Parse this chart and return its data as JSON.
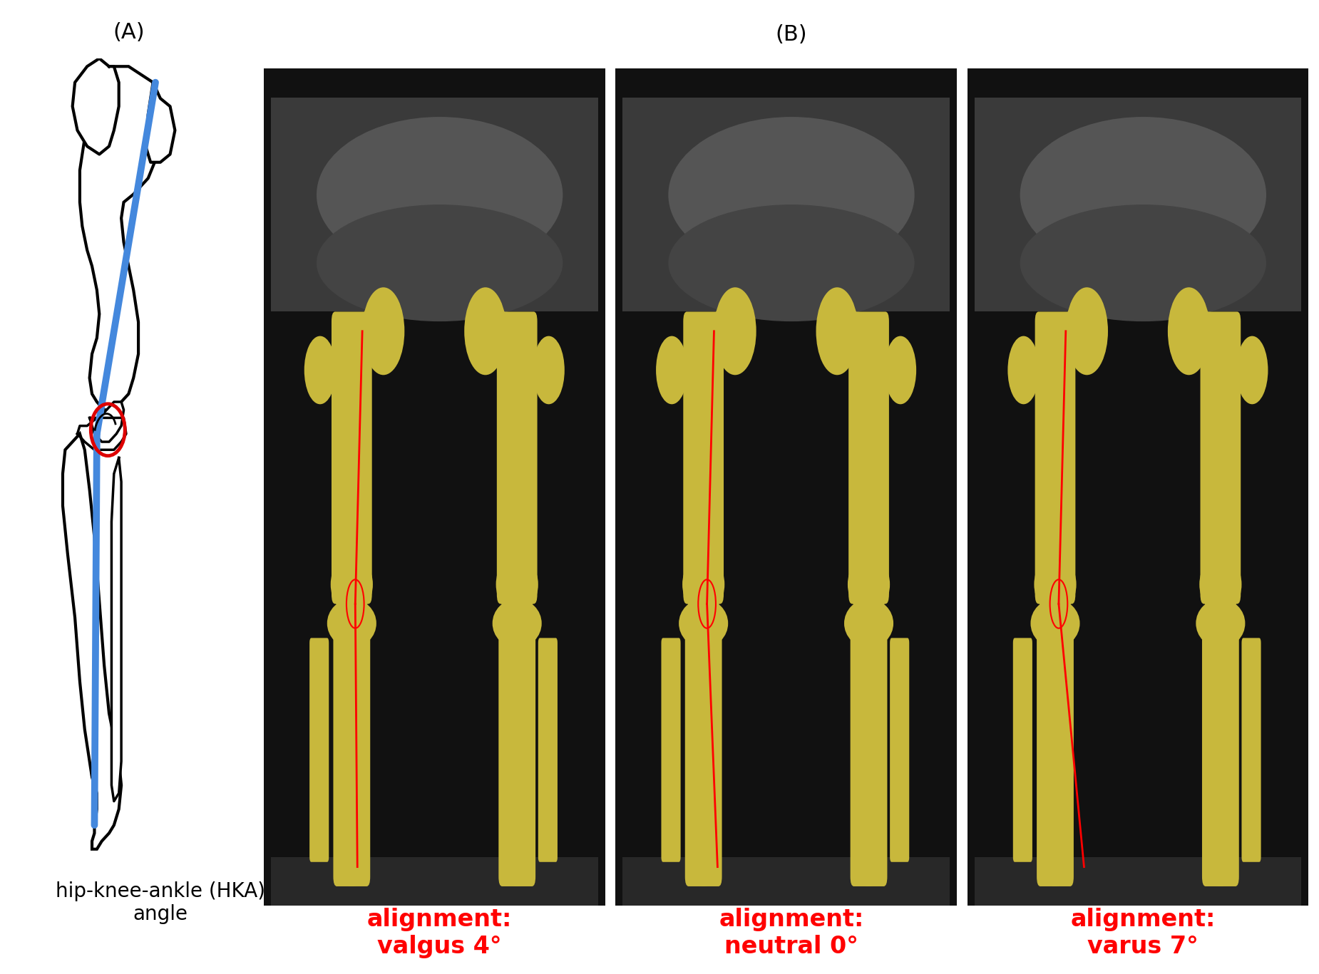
{
  "panel_a_label": "(A)",
  "panel_b_label": "(B)",
  "label_fontsize": 22,
  "caption_texts": [
    "alignment:\nvalgus 4°",
    "alignment:\nneutral 0°",
    "alignment:\nvarus 7°"
  ],
  "caption_color": "#ff0000",
  "caption_fontsize": 24,
  "hka_label": "hip-knee-ankle (HKA)\nangle",
  "hka_fontsize": 20,
  "bg_color": "#ffffff",
  "panel_b_bg": "#080808",
  "bone_yellow": "#c8b83c",
  "red_line_color": "#ff0000",
  "blue_line_color": "#4488dd",
  "red_circle_color": "#dd0000",
  "black_outline": "#000000"
}
